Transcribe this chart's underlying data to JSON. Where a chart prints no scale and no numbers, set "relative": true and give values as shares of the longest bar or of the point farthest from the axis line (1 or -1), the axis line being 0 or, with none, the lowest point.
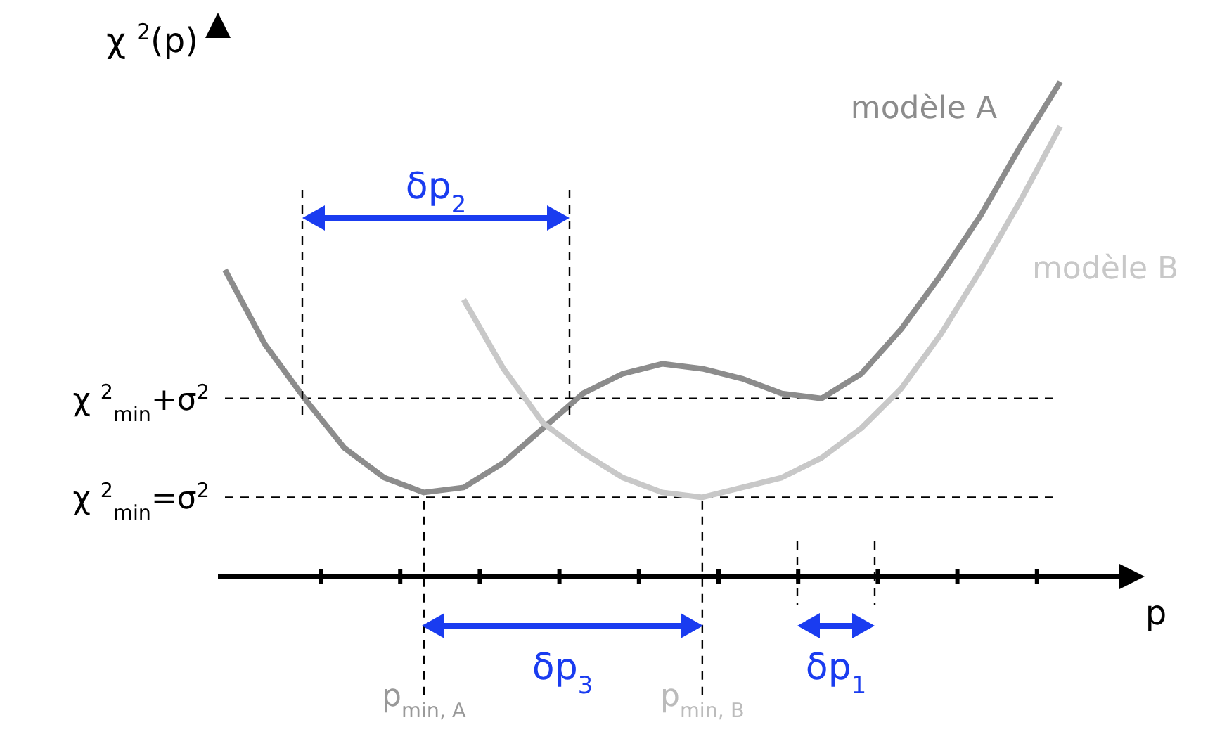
{
  "chart_data": {
    "type": "line",
    "relative": true,
    "xlabel": "p",
    "ylabel": "χ $^{2}$(p)",
    "categories": [
      null,
      null,
      null,
      null,
      null,
      "p$_{min, A}$",
      null,
      null,
      null,
      null,
      null,
      null,
      "p$_{min, B}$",
      null,
      null,
      null,
      null,
      null,
      null,
      null,
      null,
      null
    ],
    "series": [
      {
        "name": "modèle A",
        "color": "#8c8c8c",
        "values": [
          0.62,
          0.47,
          0.36,
          0.26,
          0.2,
          0.17,
          0.18,
          0.23,
          0.3,
          0.37,
          0.41,
          0.43,
          0.42,
          0.4,
          0.37,
          0.36,
          0.41,
          0.5,
          0.61,
          0.73,
          0.87,
          1
        ]
      },
      {
        "name": "modèle B",
        "color": "#c8c8c8",
        "values": [
          null,
          null,
          null,
          null,
          null,
          null,
          0.56,
          0.42,
          0.31,
          0.25,
          0.2,
          0.17,
          0.16,
          0.18,
          0.2,
          0.24,
          0.3,
          0.38,
          0.49,
          0.62,
          0.76,
          0.91
        ]
      }
    ],
    "ref_lines": [
      {
        "axis": "y",
        "value": 0.36,
        "label": "χ $^{2}$$_{min}$+σ$^{2}$",
        "line_style": "dashed",
        "color": "#000000"
      },
      {
        "axis": "y",
        "value": 0.16,
        "label": "χ $^{2}$$_{min}$=σ$^{2}$",
        "line_style": "dashed",
        "color": "#000000"
      },
      {
        "axis": "x",
        "value": "p$_{min, A}$",
        "line_style": "dashed",
        "color": "#000000"
      },
      {
        "axis": "x",
        "value": "p$_{min, B}$",
        "line_style": "dashed",
        "color": "#000000"
      }
    ],
    "annotations": [
      "δp$_{2}$",
      "δp$_{3}$",
      "δp$_{1}$"
    ]
  }
}
